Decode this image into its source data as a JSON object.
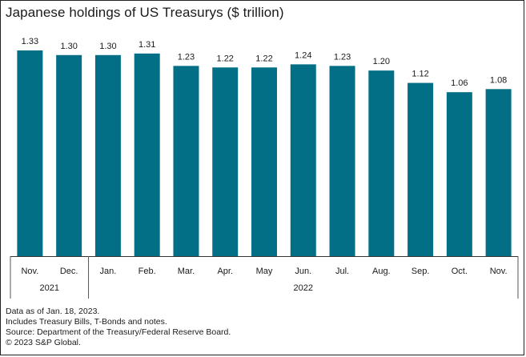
{
  "chart_data": {
    "type": "bar",
    "title": "Japanese holdings of US Treasurys ($ trillion)",
    "categories": [
      "Nov.",
      "Dec.",
      "Jan.",
      "Feb.",
      "Mar.",
      "Apr.",
      "May",
      "Jun.",
      "Jul.",
      "Aug.",
      "Sep.",
      "Oct.",
      "Nov."
    ],
    "values": [
      1.33,
      1.3,
      1.3,
      1.31,
      1.23,
      1.22,
      1.22,
      1.24,
      1.23,
      1.2,
      1.12,
      1.06,
      1.08
    ],
    "data_labels": [
      "1.33",
      "1.30",
      "1.30",
      "1.31",
      "1.23",
      "1.22",
      "1.22",
      "1.24",
      "1.23",
      "1.20",
      "1.12",
      "1.06",
      "1.08"
    ],
    "year_groups": [
      {
        "label": "2021",
        "start": 0,
        "end": 1
      },
      {
        "label": "2022",
        "start": 2,
        "end": 12
      }
    ],
    "ylim": [
      0,
      1.33
    ],
    "bar_color": "#036f86",
    "xlabel": "",
    "ylabel": ""
  },
  "notes": [
    "Data as of Jan. 18, 2023.",
    "Includes Treasury Bills, T-Bonds and notes.",
    "Source: Department of the Treasury/Federal Reserve Board.",
    "© 2023 S&P Global."
  ]
}
